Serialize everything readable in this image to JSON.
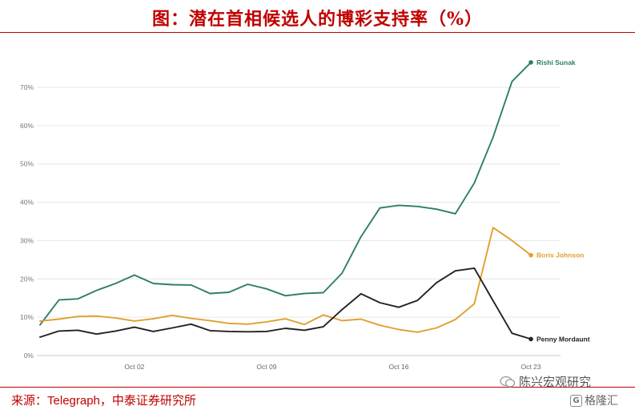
{
  "header": {
    "title": "图：潜在首相候选人的博彩支持率（%）"
  },
  "footer": {
    "source_prefix": "来源：",
    "source_name": "Telegraph",
    "source_suffix": "，中泰证券研究所"
  },
  "watermark": {
    "channel": "陈兴宏观研究",
    "site": "格隆汇",
    "wechat_icon": "wechat-icon",
    "logo_icon": "g-logo-icon"
  },
  "chart_data": {
    "type": "line",
    "title": "",
    "xlabel": "",
    "ylabel": "",
    "ylim": [
      0,
      70
    ],
    "yticks": [
      0,
      10,
      20,
      30,
      40,
      50,
      60,
      70
    ],
    "ytick_labels": [
      "0%",
      "10%",
      "20%",
      "30%",
      "40%",
      "50%",
      "60%",
      "70%"
    ],
    "xticks": [
      {
        "x": 5,
        "label": "Oct 02"
      },
      {
        "x": 12,
        "label": "Oct 09"
      },
      {
        "x": 19,
        "label": "Oct 16"
      },
      {
        "x": 26,
        "label": "Oct 23"
      }
    ],
    "xlim": [
      0,
      26.5
    ],
    "grid": "horizontal",
    "legend": "end-of-line labels",
    "series": [
      {
        "name": "Rishi Sunak",
        "color": "#2e7d6b",
        "x": [
          0,
          1,
          2,
          3,
          4,
          5,
          6,
          7,
          8,
          9,
          10,
          11,
          12,
          13,
          14,
          15,
          16,
          17,
          18,
          19,
          20,
          21,
          22,
          23,
          24,
          25,
          26
        ],
        "values": [
          8,
          14.5,
          14.8,
          17,
          18.8,
          21,
          18.8,
          18.5,
          18.4,
          16.2,
          16.5,
          18.6,
          17.4,
          15.6,
          16.2,
          16.4,
          21.5,
          31,
          38.5,
          39.2,
          38.9,
          38.2,
          37,
          45,
          57,
          71.5,
          76.5
        ]
      },
      {
        "name": "Boris Johnson",
        "color": "#e0a030",
        "x": [
          0,
          1,
          2,
          3,
          4,
          5,
          6,
          7,
          8,
          9,
          10,
          11,
          12,
          13,
          14,
          15,
          16,
          17,
          18,
          19,
          20,
          21,
          22,
          23,
          24,
          25,
          26
        ],
        "values": [
          9,
          9.5,
          10.2,
          10.3,
          9.8,
          9,
          9.6,
          10.5,
          9.7,
          9.1,
          8.4,
          8.2,
          8.8,
          9.6,
          8.1,
          10.6,
          9.1,
          9.5,
          7.9,
          6.8,
          6.1,
          7.2,
          9.4,
          13.5,
          33.4,
          30,
          26.2
        ]
      },
      {
        "name": "Penny Mordaunt",
        "color": "#222222",
        "x": [
          0,
          1,
          2,
          3,
          4,
          5,
          6,
          7,
          8,
          9,
          10,
          11,
          12,
          13,
          14,
          15,
          16,
          17,
          18,
          19,
          20,
          21,
          22,
          23,
          24,
          25,
          26
        ],
        "values": [
          4.8,
          6.4,
          6.6,
          5.6,
          6.4,
          7.4,
          6.3,
          7.2,
          8.2,
          6.5,
          6.3,
          6.2,
          6.3,
          7.1,
          6.6,
          7.5,
          12,
          16.1,
          13.8,
          12.6,
          14.4,
          19,
          22.1,
          22.8,
          14.3,
          5.8,
          4.3
        ]
      }
    ]
  }
}
